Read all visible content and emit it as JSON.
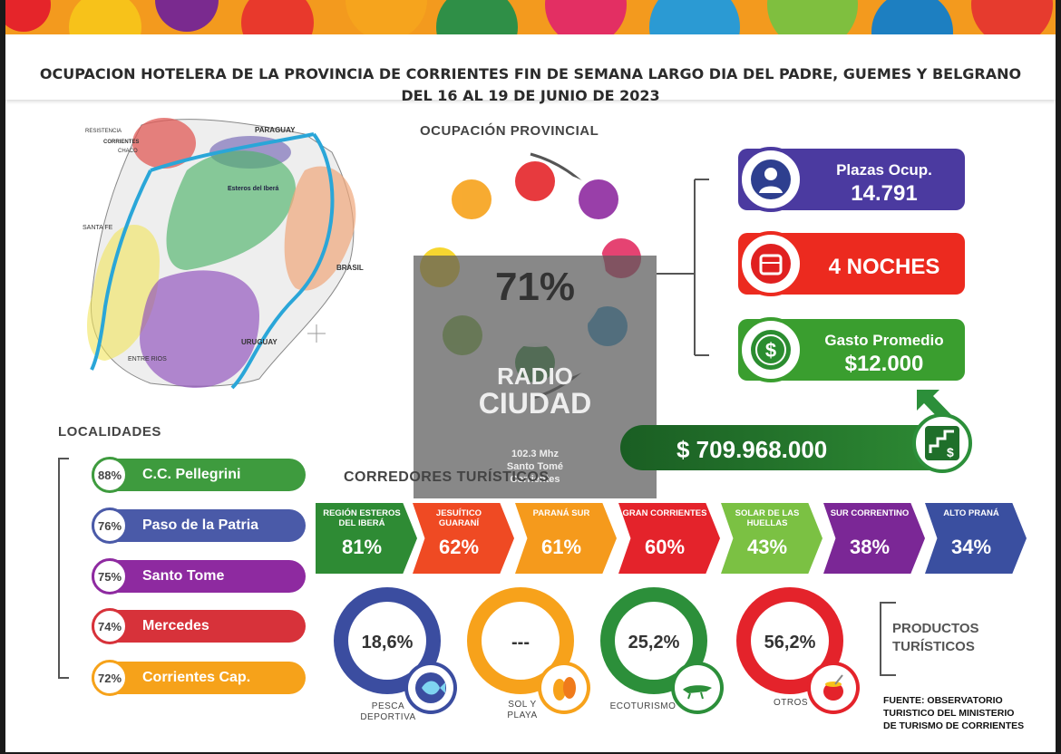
{
  "header": {
    "title": "OCUPACION HOTELERA DE LA PROVINCIA DE CORRIENTES FIN DE SEMANA LARGO DIA DEL PADRE, GUEMES Y BELGRANO DEL 16 AL 19 DE JUNIO DE 2023"
  },
  "map": {
    "labels": [
      "RESISTENCIA",
      "CORRIENTES",
      "CHACO",
      "PARAGUAY",
      "SANTA FE",
      "BRASIL",
      "URUGUAY",
      "ENTRE RIOS",
      "Esteros del Iberá"
    ]
  },
  "ocupacion": {
    "title": "OCUPACIÓN PROVINCIAL",
    "value": "71%"
  },
  "watermark": {
    "name_line1": "RADIO",
    "name_line2": "CIUDAD",
    "freq": "102.3 Mhz",
    "city": "Santo Tomé",
    "province": "Corrientes"
  },
  "kpis": {
    "plazas_label": "Plazas Ocup.",
    "plazas_value": "14.791",
    "noches": "4 NOCHES",
    "gasto_label": "Gasto Promedio",
    "gasto_value": "$12.000",
    "total": "$ 709.968.000"
  },
  "localidades": {
    "title": "LOCALIDADES",
    "items": [
      {
        "pct": "88%",
        "name": "C.C. Pellegrini",
        "color": "#3e9b3e"
      },
      {
        "pct": "76%",
        "name": "Paso de la Patria",
        "color": "#4a5aa8"
      },
      {
        "pct": "75%",
        "name": "Santo Tome",
        "color": "#8e2aa0"
      },
      {
        "pct": "74%",
        "name": "Mercedes",
        "color": "#d7323a"
      },
      {
        "pct": "72%",
        "name": "Corrientes Cap.",
        "color": "#f6a21a"
      }
    ]
  },
  "corredores": {
    "title": "CORREDORES TURÍSTICOS",
    "items": [
      {
        "label": "REGIÓN ESTEROS DEL IBERÁ",
        "pct": "81%",
        "color": "#2e8b34"
      },
      {
        "label": "JESUÍTICO GUARANÍ",
        "pct": "62%",
        "color": "#ef4a23"
      },
      {
        "label": "PARANÁ SUR",
        "pct": "61%",
        "color": "#f59a1c"
      },
      {
        "label": "GRAN CORRIENTES",
        "pct": "60%",
        "color": "#e4232b"
      },
      {
        "label": "SOLAR DE LAS HUELLAS",
        "pct": "43%",
        "color": "#7bc143"
      },
      {
        "label": "SUR CORRENTINO",
        "pct": "38%",
        "color": "#7b2796"
      },
      {
        "label": "ALTO PRANÁ",
        "pct": "34%",
        "color": "#3a4fa0"
      }
    ]
  },
  "productos": {
    "title_line1": "PRODUCTOS",
    "title_line2": "TURÍSTICOS",
    "items": [
      {
        "value": "18,6%",
        "label_line1": "PESCA",
        "label_line2": "DEPORTIVA",
        "color": "#3b4da0",
        "icon": "fish-icon"
      },
      {
        "value": "---",
        "label_line1": "SOL Y",
        "label_line2": "PLAYA",
        "color": "#f7a21b",
        "icon": "sandals-icon"
      },
      {
        "value": "25,2%",
        "label_line1": "ECOTURISMO",
        "label_line2": "",
        "color": "#2c8f3a",
        "icon": "crocodile-icon"
      },
      {
        "value": "56,2%",
        "label_line1": "OTROS",
        "label_line2": "",
        "color": "#e4232b",
        "icon": "mate-icon"
      }
    ]
  },
  "fuente": {
    "line1": "FUENTE: OBSERVATORIO",
    "line2": "TURISTICO DEL MINISTERIO",
    "line3": "DE TURISMO DE CORRIENTES"
  }
}
